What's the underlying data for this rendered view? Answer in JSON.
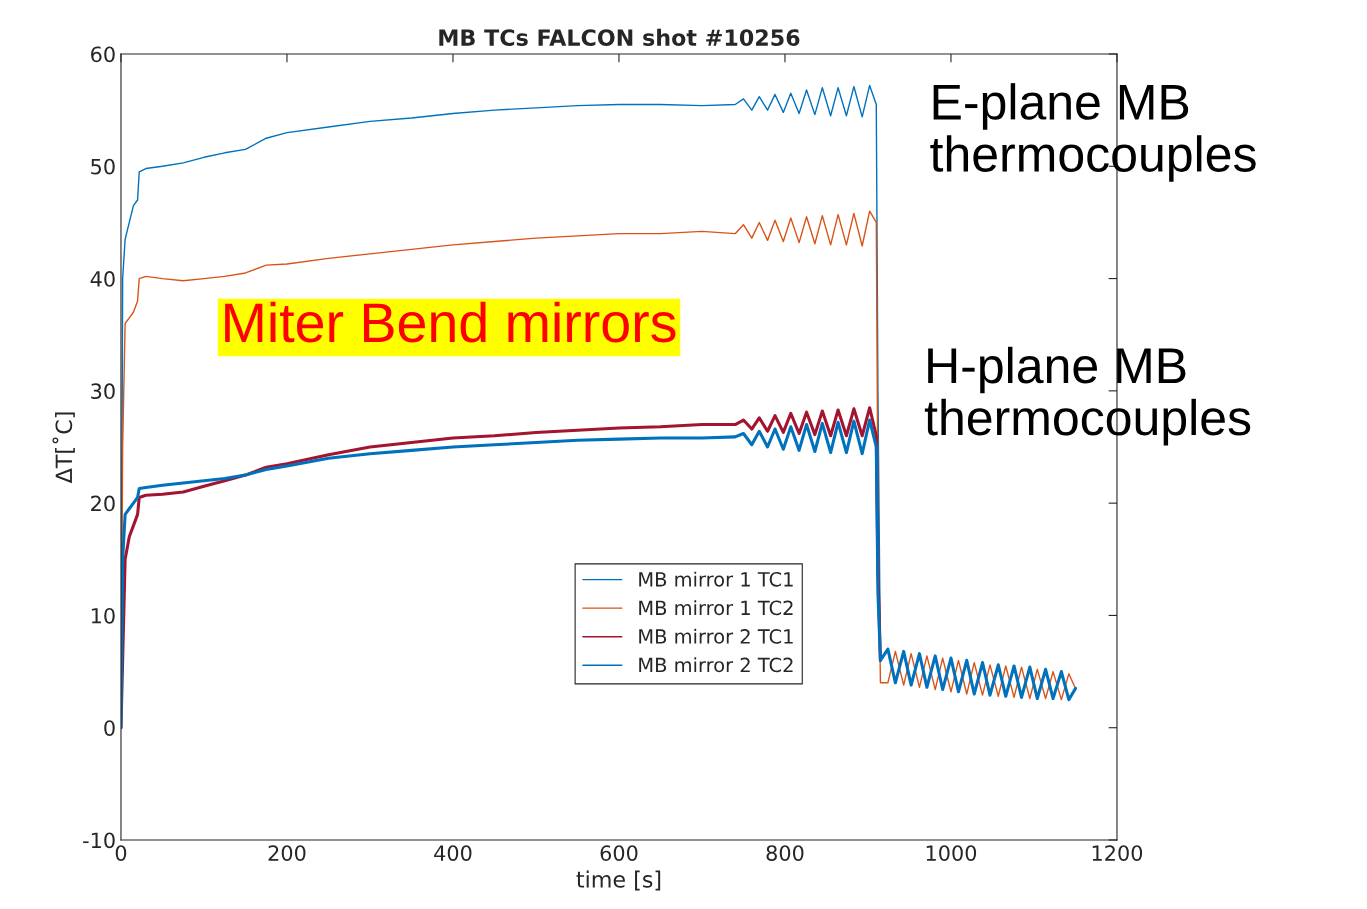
{
  "chart_data": {
    "type": "line",
    "title": "MB TCs FALCON shot #10256",
    "xlabel": "time [s]",
    "ylabel": "ΔT[˚C]",
    "x": [
      0,
      2,
      5,
      10,
      15,
      20,
      22,
      30,
      50,
      75,
      100,
      125,
      150,
      175,
      200,
      250,
      300,
      350,
      400,
      450,
      500,
      550,
      600,
      650,
      700,
      740,
      750,
      760,
      769,
      779,
      788,
      798,
      807,
      817,
      826,
      836,
      845,
      855,
      864,
      874,
      883,
      893,
      902,
      910,
      912,
      915,
      924,
      933,
      943,
      952,
      962,
      971,
      981,
      990,
      1000,
      1009,
      1019,
      1028,
      1038,
      1047,
      1057,
      1066,
      1076,
      1085,
      1095,
      1104,
      1114,
      1123,
      1133,
      1142,
      1150
    ],
    "series": [
      {
        "name": "MB mirror 1 TC1",
        "color": "#0072bd",
        "values": [
          0,
          40,
          43.5,
          45,
          46.5,
          47,
          49.5,
          49.8,
          50,
          50.3,
          50.8,
          51.2,
          51.5,
          52.5,
          53,
          53.5,
          54,
          54.3,
          54.7,
          55,
          55.2,
          55.4,
          55.5,
          55.5,
          55.4,
          55.5,
          56,
          55,
          56.2,
          55,
          56.4,
          54.8,
          56.5,
          54.7,
          56.8,
          54.6,
          57,
          54.5,
          57,
          54.5,
          57.1,
          54.4,
          57.2,
          55.5,
          30,
          6,
          7,
          4,
          6.8,
          3.8,
          6.6,
          3.6,
          6.4,
          3.4,
          6.2,
          3.2,
          6,
          3,
          5.8,
          2.9,
          5.6,
          2.8,
          5.5,
          2.7,
          5.4,
          2.6,
          5.2,
          2.6,
          5,
          2.5,
          3.5
        ]
      },
      {
        "name": "MB mirror 1 TC2",
        "color": "#d95319",
        "values": [
          0,
          25,
          36,
          36.5,
          37,
          38,
          40,
          40.2,
          40,
          39.8,
          40,
          40.2,
          40.5,
          41.2,
          41.3,
          41.8,
          42.2,
          42.6,
          43,
          43.3,
          43.6,
          43.8,
          44,
          44,
          44.2,
          44,
          44.8,
          43.6,
          45,
          43.4,
          45.2,
          43.3,
          45.4,
          43.2,
          45.5,
          43.1,
          45.6,
          43,
          45.7,
          43,
          45.8,
          42.9,
          46,
          45,
          20,
          4,
          4,
          6.8,
          3.8,
          6.6,
          3.6,
          6.4,
          3.4,
          6.2,
          3.2,
          6,
          3,
          5.8,
          2.9,
          5.6,
          2.8,
          5.5,
          2.7,
          5.4,
          2.6,
          5.2,
          2.6,
          5,
          2.5,
          4.8,
          3.5
        ]
      },
      {
        "name": "MB mirror 2 TC1",
        "color": "#a2142f",
        "values": [
          0,
          6,
          15,
          17,
          18,
          19,
          20.5,
          20.7,
          20.8,
          21,
          21.5,
          22,
          22.5,
          23.2,
          23.5,
          24.3,
          25,
          25.4,
          25.8,
          26,
          26.3,
          26.5,
          26.7,
          26.8,
          27,
          27,
          27.4,
          26.6,
          27.6,
          26.4,
          27.8,
          26.3,
          28,
          26.2,
          28.1,
          26.1,
          28.2,
          26,
          28.3,
          26,
          28.4,
          26,
          28.5,
          26,
          14,
          6,
          null,
          null,
          null,
          null,
          null,
          null,
          null,
          null,
          null,
          null,
          null,
          null,
          null,
          null,
          null,
          null,
          null,
          null,
          null,
          null,
          null,
          null,
          null,
          null,
          null
        ]
      },
      {
        "name": "MB mirror 2 TC2",
        "color": "#0072bd",
        "values": [
          0,
          15,
          19,
          19.5,
          20,
          20.5,
          21.3,
          21.4,
          21.6,
          21.8,
          22,
          22.2,
          22.5,
          23,
          23.3,
          24,
          24.4,
          24.7,
          25,
          25.2,
          25.4,
          25.6,
          25.7,
          25.8,
          25.8,
          25.9,
          26.2,
          25.2,
          26.4,
          25,
          26.6,
          24.8,
          26.8,
          24.7,
          27,
          24.6,
          27.1,
          24.5,
          27.2,
          24.5,
          27.3,
          24.4,
          27.4,
          25,
          12,
          6,
          7,
          4,
          6.8,
          3.8,
          6.6,
          3.6,
          6.4,
          3.4,
          6.2,
          3.2,
          6,
          3,
          5.8,
          2.9,
          5.6,
          2.8,
          5.5,
          2.7,
          5.4,
          2.6,
          5.2,
          2.6,
          5,
          2.5,
          3.5
        ]
      }
    ],
    "xlim": [
      0,
      1200
    ],
    "xticks": [
      0,
      200,
      400,
      600,
      800,
      1000,
      1200
    ],
    "ylim": [
      -10,
      60
    ],
    "yticks": [
      -10,
      0,
      10,
      20,
      30,
      40,
      50,
      60
    ],
    "grid": false,
    "legend": "center",
    "line_style": "solid",
    "marker": "none",
    "annotations": [
      "E-plane MB\nthermocouples",
      "H-plane MB\nthermocouples",
      "Miter Bend mirrors"
    ]
  }
}
